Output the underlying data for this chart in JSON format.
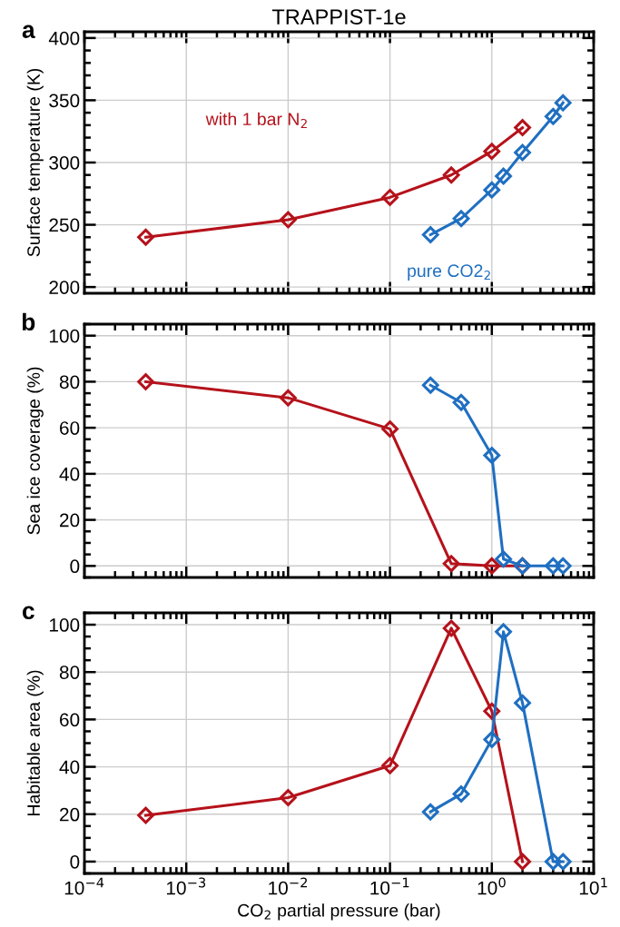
{
  "chart_data": [
    {
      "type": "line",
      "title": "TRAPPIST-1e",
      "ylabel": "Surface temperature (K)",
      "annotations": [
        "a"
      ],
      "log": "x",
      "xlim": [
        0.0001,
        10
      ],
      "xticks": [
        {
          "value": 0.0001,
          "label": null
        },
        {
          "value": 0.001,
          "label": null
        },
        {
          "value": 0.01,
          "label": null
        },
        {
          "value": 0.1,
          "label": null
        },
        {
          "value": 1,
          "label": null
        },
        {
          "value": 10,
          "label": null
        }
      ],
      "ylim": [
        195,
        405
      ],
      "yticks": [
        200,
        250,
        300,
        350,
        400
      ],
      "grid": true,
      "marker": "diamond",
      "line_style": "solid",
      "tick_labels": "y",
      "series": [
        {
          "name": "with 1 bar N$_{2}$",
          "color": "#b5121b",
          "x": [
            0.0004,
            0.01,
            0.1,
            0.4,
            1,
            2
          ],
          "values": [
            240,
            254,
            272,
            290,
            309,
            328
          ]
        },
        {
          "name": "pure CO2$_{2}$",
          "color": "#1f6fc1",
          "x": [
            0.25,
            0.5,
            1,
            1.3,
            2,
            4,
            5
          ],
          "values": [
            242,
            255,
            278,
            289,
            308,
            337,
            348
          ]
        }
      ]
    },
    {
      "type": "line",
      "ylabel": "Sea ice coverage (%)",
      "annotations": [
        "b"
      ],
      "log": "x",
      "xlim": [
        0.0001,
        10
      ],
      "xticks": [
        {
          "value": 0.0001,
          "label": null
        },
        {
          "value": 0.001,
          "label": null
        },
        {
          "value": 0.01,
          "label": null
        },
        {
          "value": 0.1,
          "label": null
        },
        {
          "value": 1,
          "label": null
        },
        {
          "value": 10,
          "label": null
        }
      ],
      "ylim": [
        -5,
        105
      ],
      "yticks": [
        0,
        20,
        40,
        60,
        80,
        100
      ],
      "grid": true,
      "marker": "diamond",
      "line_style": "solid",
      "tick_labels": "y",
      "series": [
        {
          "color": "#b5121b",
          "x": [
            0.0004,
            0.01,
            0.1,
            0.4,
            1,
            2
          ],
          "values": [
            80,
            73,
            59.5,
            1,
            0,
            0
          ]
        },
        {
          "color": "#1f6fc1",
          "x": [
            0.25,
            0.5,
            1,
            1.3,
            2,
            4,
            5
          ],
          "values": [
            78.5,
            71,
            48,
            3,
            0,
            0,
            0
          ]
        }
      ]
    },
    {
      "type": "line",
      "ylabel": "Habitable area (%)",
      "xlabel": "CO$_{2}$ partial pressure (bar)",
      "annotations": [
        "c"
      ],
      "log": "x",
      "xlim": [
        0.0001,
        10
      ],
      "xticks": [
        {
          "value": 0.0001,
          "label": "10$^{−4}$"
        },
        {
          "value": 0.001,
          "label": "10$^{−3}$"
        },
        {
          "value": 0.01,
          "label": "10$^{−2}$"
        },
        {
          "value": 0.1,
          "label": "10$^{−1}$"
        },
        {
          "value": 1,
          "label": "10$^{0}$"
        },
        {
          "value": 10,
          "label": "10$^{1}$"
        }
      ],
      "ylim": [
        -5,
        105
      ],
      "yticks": [
        0,
        20,
        40,
        60,
        80,
        100
      ],
      "grid": true,
      "marker": "diamond",
      "line_style": "solid",
      "series": [
        {
          "color": "#b5121b",
          "x": [
            0.0004,
            0.01,
            0.1,
            0.4,
            1,
            2
          ],
          "values": [
            19.5,
            27,
            40.5,
            98.5,
            63.5,
            0
          ]
        },
        {
          "color": "#1f6fc1",
          "x": [
            0.25,
            0.5,
            1,
            1.3,
            2,
            4,
            5
          ],
          "values": [
            21,
            28.5,
            51.5,
            97,
            67,
            0,
            0
          ]
        }
      ]
    }
  ]
}
